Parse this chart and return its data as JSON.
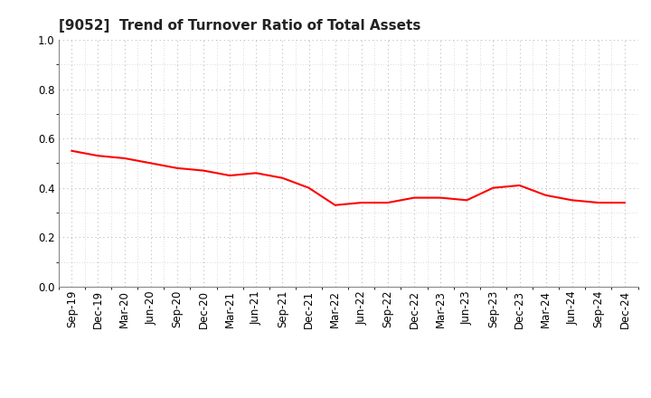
{
  "title": "[9052]  Trend of Turnover Ratio of Total Assets",
  "x_labels": [
    "Sep-19",
    "Dec-19",
    "Mar-20",
    "Jun-20",
    "Sep-20",
    "Dec-20",
    "Mar-21",
    "Jun-21",
    "Sep-21",
    "Dec-21",
    "Mar-22",
    "Jun-22",
    "Sep-22",
    "Dec-22",
    "Mar-23",
    "Jun-23",
    "Sep-23",
    "Dec-23",
    "Mar-24",
    "Jun-24",
    "Sep-24",
    "Dec-24"
  ],
  "y_values": [
    0.55,
    0.53,
    0.52,
    0.5,
    0.48,
    0.47,
    0.45,
    0.46,
    0.44,
    0.4,
    0.33,
    0.34,
    0.34,
    0.36,
    0.36,
    0.35,
    0.4,
    0.41,
    0.37,
    0.35,
    0.34,
    0.34
  ],
  "line_color": "#FF0000",
  "line_width": 1.5,
  "ylim": [
    0.0,
    1.0
  ],
  "yticks": [
    0.0,
    0.2,
    0.4,
    0.6,
    0.8,
    1.0
  ],
  "background_color": "#ffffff",
  "grid_color": "#bbbbbb",
  "title_fontsize": 11,
  "tick_fontsize": 8.5,
  "title_color": "#222222"
}
